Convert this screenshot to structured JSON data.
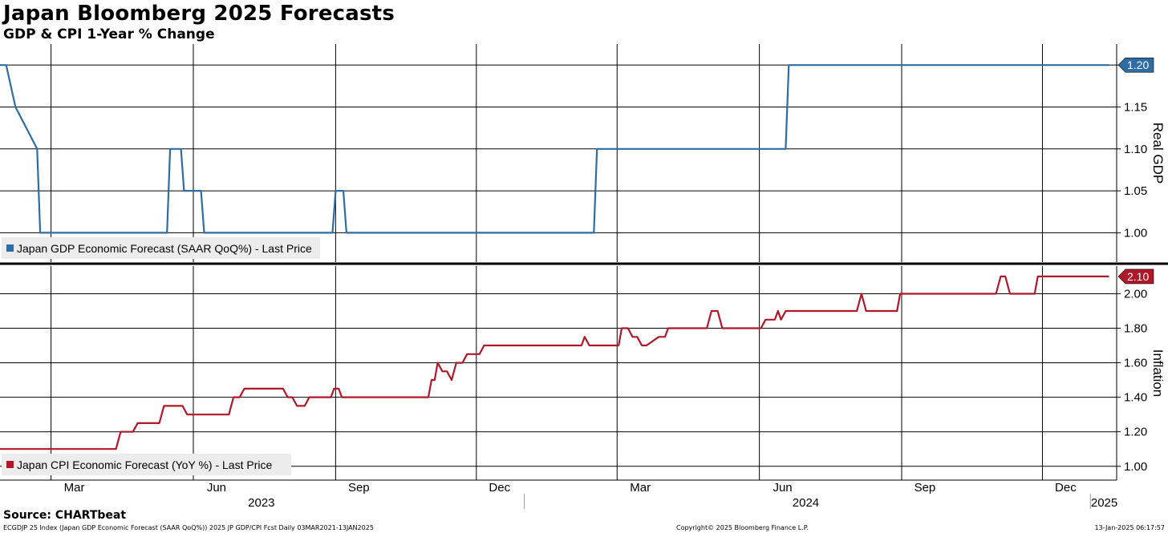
{
  "header": {
    "title": "Japan Bloomberg 2025 Forecasts",
    "subtitle": "GDP & CPI 1-Year % Change"
  },
  "footer": {
    "source": "Source: CHARTbeat",
    "info": "ECGDJP 25 Index (Japan GDP Economic Forecast (SAAR QoQ%)) 2025 JP GDP/CPI Fcst  Daily 03MAR2021-13JAN2025",
    "copyright": "Copyright© 2025 Bloomberg Finance L.P.",
    "timestamp": "13-Jan-2025 06:17:57"
  },
  "colors": {
    "gdp": "#2d6da3",
    "cpi": "#b0182a",
    "grid": "#000000"
  },
  "chart_data": [
    {
      "type": "line",
      "panel": "top",
      "ylabel": "Real GDP",
      "ylim": [
        0.965,
        1.225
      ],
      "yticks": [
        1.0,
        1.05,
        1.1,
        1.15,
        1.2
      ],
      "ytick_labels": [
        "1.00",
        "1.05",
        "1.10",
        "1.15",
        "1.20"
      ],
      "last_value_label": "1.20",
      "legend": "Japan GDP Economic Forecast (SAAR QoQ%) - Last Price",
      "series": [
        {
          "name": "Japan GDP Economic Forecast (SAAR QoQ%) - Last Price",
          "x": [
            "2023-01-27",
            "2023-01-31",
            "2023-02-06",
            "2023-02-20",
            "2023-02-22",
            "2023-05-15",
            "2023-05-17",
            "2023-05-24",
            "2023-05-26",
            "2023-06-06",
            "2023-06-08",
            "2023-08-30",
            "2023-09-01",
            "2023-09-06",
            "2023-09-08",
            "2024-02-15",
            "2024-02-17",
            "2024-06-18",
            "2024-06-20",
            "2025-01-13"
          ],
          "y": [
            1.2,
            1.2,
            1.15,
            1.1,
            1.0,
            1.0,
            1.1,
            1.1,
            1.05,
            1.05,
            1.0,
            1.0,
            1.05,
            1.05,
            1.0,
            1.0,
            1.1,
            1.1,
            1.2,
            1.2
          ]
        }
      ]
    },
    {
      "type": "line",
      "panel": "bottom",
      "ylabel": "Inflation",
      "ylim": [
        0.92,
        2.16
      ],
      "yticks": [
        1.0,
        1.2,
        1.4,
        1.6,
        1.8,
        2.0
      ],
      "ytick_labels": [
        "1.00",
        "1.20",
        "1.40",
        "1.60",
        "1.80",
        "2.00"
      ],
      "last_value_label": "2.10",
      "legend": "Japan CPI Economic Forecast (YoY %) - Last Price",
      "series": [
        {
          "name": "Japan CPI Economic Forecast (YoY %) - Last Price",
          "x": [
            "2023-01-27",
            "2023-04-12",
            "2023-04-15",
            "2023-04-23",
            "2023-04-26",
            "2023-05-10",
            "2023-05-13",
            "2023-05-25",
            "2023-05-28",
            "2023-06-24",
            "2023-06-27",
            "2023-07-01",
            "2023-07-04",
            "2023-07-29",
            "2023-08-01",
            "2023-08-04",
            "2023-08-07",
            "2023-08-12",
            "2023-08-15",
            "2023-08-29",
            "2023-08-31",
            "2023-09-03",
            "2023-09-05",
            "2023-09-08",
            "2023-09-11",
            "2023-10-31",
            "2023-11-02",
            "2023-11-04",
            "2023-11-06",
            "2023-11-09",
            "2023-11-12",
            "2023-11-15",
            "2023-11-18",
            "2023-11-22",
            "2023-11-25",
            "2023-12-03",
            "2023-12-06",
            "2024-02-07",
            "2024-02-09",
            "2024-02-12",
            "2024-03-02",
            "2024-03-04",
            "2024-03-08",
            "2024-03-11",
            "2024-03-14",
            "2024-03-17",
            "2024-03-20",
            "2024-03-28",
            "2024-04-01",
            "2024-04-03",
            "2024-04-06",
            "2024-04-28",
            "2024-05-01",
            "2024-05-05",
            "2024-05-08",
            "2024-06-02",
            "2024-06-05",
            "2024-06-11",
            "2024-06-13",
            "2024-06-15",
            "2024-06-18",
            "2024-08-03",
            "2024-08-06",
            "2024-08-09",
            "2024-08-29",
            "2024-08-31",
            "2024-11-01",
            "2024-11-04",
            "2024-11-07",
            "2024-11-10",
            "2024-11-26",
            "2024-11-28",
            "2025-01-13"
          ],
          "y": [
            1.1,
            1.1,
            1.2,
            1.2,
            1.25,
            1.25,
            1.35,
            1.35,
            1.3,
            1.3,
            1.4,
            1.4,
            1.45,
            1.45,
            1.4,
            1.4,
            1.35,
            1.35,
            1.4,
            1.4,
            1.45,
            1.45,
            1.4,
            1.4,
            1.4,
            1.4,
            1.5,
            1.5,
            1.6,
            1.55,
            1.55,
            1.5,
            1.6,
            1.6,
            1.65,
            1.65,
            1.7,
            1.7,
            1.75,
            1.7,
            1.7,
            1.8,
            1.8,
            1.75,
            1.75,
            1.7,
            1.7,
            1.75,
            1.75,
            1.8,
            1.8,
            1.8,
            1.9,
            1.9,
            1.8,
            1.8,
            1.85,
            1.85,
            1.9,
            1.85,
            1.9,
            1.9,
            2.0,
            1.9,
            1.9,
            2.0,
            2.0,
            2.1,
            2.1,
            2.0,
            2.0,
            2.1,
            2.1
          ]
        }
      ]
    }
  ],
  "x_axis": {
    "range": [
      "2023-01-27",
      "2025-01-18"
    ],
    "months": [
      {
        "label": "Mar",
        "date": "2023-03-01",
        "pos": "2023-03-16"
      },
      {
        "label": "Jun",
        "date": "2023-06-01",
        "pos": "2023-06-16"
      },
      {
        "label": "Sep",
        "date": "2023-09-01",
        "pos": "2023-09-16"
      },
      {
        "label": "Dec",
        "date": "2023-12-01",
        "pos": "2023-12-16"
      },
      {
        "label": "Mar",
        "date": "2024-03-01",
        "pos": "2024-03-16"
      },
      {
        "label": "Jun",
        "date": "2024-06-01",
        "pos": "2024-06-16"
      },
      {
        "label": "Sep",
        "date": "2024-09-01",
        "pos": "2024-09-16"
      },
      {
        "label": "Dec",
        "date": "2024-12-01",
        "pos": "2024-12-16"
      }
    ],
    "years": [
      {
        "label": "2023",
        "pos": "2023-07-15"
      },
      {
        "label": "2024",
        "pos": "2024-07-01"
      },
      {
        "label": "2025",
        "pos": "2025-01-10"
      }
    ],
    "year_dividers": [
      "2024-01-01",
      "2025-01-01"
    ]
  }
}
